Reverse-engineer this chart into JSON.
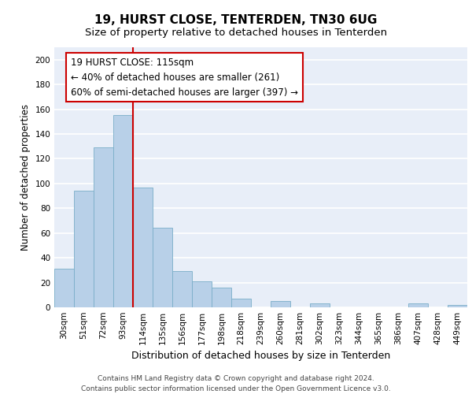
{
  "title1": "19, HURST CLOSE, TENTERDEN, TN30 6UG",
  "title2": "Size of property relative to detached houses in Tenterden",
  "xlabel": "Distribution of detached houses by size in Tenterden",
  "ylabel": "Number of detached properties",
  "categories": [
    "30sqm",
    "51sqm",
    "72sqm",
    "93sqm",
    "114sqm",
    "135sqm",
    "156sqm",
    "177sqm",
    "198sqm",
    "218sqm",
    "239sqm",
    "260sqm",
    "281sqm",
    "302sqm",
    "323sqm",
    "344sqm",
    "365sqm",
    "386sqm",
    "407sqm",
    "428sqm",
    "449sqm"
  ],
  "values": [
    31,
    94,
    129,
    155,
    97,
    64,
    29,
    21,
    16,
    7,
    0,
    5,
    0,
    3,
    0,
    0,
    0,
    0,
    3,
    0,
    2
  ],
  "bar_color": "#b8d0e8",
  "bar_edge_color": "#7aaec8",
  "vline_x_index": 4,
  "vline_color": "#cc0000",
  "annotation_text": "19 HURST CLOSE: 115sqm\n← 40% of detached houses are smaller (261)\n60% of semi-detached houses are larger (397) →",
  "annotation_box_facecolor": "#ffffff",
  "annotation_box_edgecolor": "#cc0000",
  "ylim": [
    0,
    210
  ],
  "yticks": [
    0,
    20,
    40,
    60,
    80,
    100,
    120,
    140,
    160,
    180,
    200
  ],
  "background_color": "#e8eef8",
  "grid_color": "#ffffff",
  "footer_text": "Contains HM Land Registry data © Crown copyright and database right 2024.\nContains public sector information licensed under the Open Government Licence v3.0.",
  "title1_fontsize": 11,
  "title2_fontsize": 9.5,
  "xlabel_fontsize": 9,
  "ylabel_fontsize": 8.5,
  "tick_fontsize": 7.5,
  "annotation_fontsize": 8.5,
  "footer_fontsize": 6.5
}
